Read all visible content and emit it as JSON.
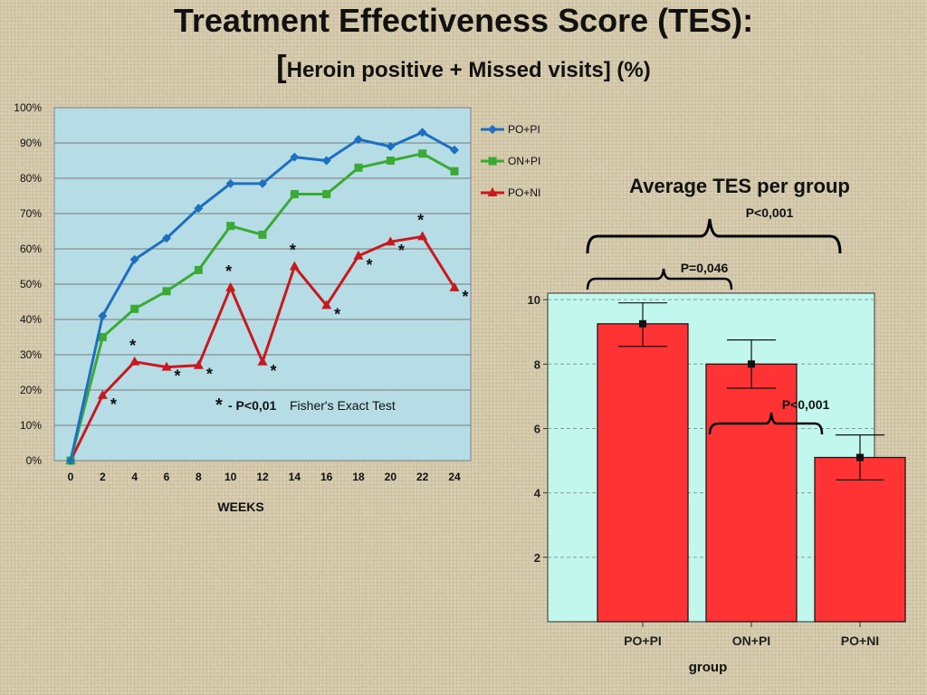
{
  "title": {
    "line1": "Treatment Effectiveness Score (TES):",
    "line2_bracket": "[",
    "line2": "Heroin positive + Missed visits] (%)"
  },
  "colors": {
    "po_pi": "#1f6fc0",
    "on_pi": "#3aaa35",
    "po_ni": "#c8191e",
    "line_plot_bg": "#b6dde6",
    "bar_plot_bg": "#c2f7ee",
    "bar_fill": "#ff3333"
  },
  "line_chart": {
    "xlabel": "WEEKS",
    "note_star": "*",
    "note_bold": "- P<0,01",
    "note_rest": "Fisher's Exact Test"
  },
  "bar_chart": {
    "heading": "Average TES per group",
    "xlabel": "group",
    "p_top": "P<0,001",
    "p_mid": "P=0,046",
    "p_right": "P<0,001"
  },
  "chart_data": [
    {
      "type": "line",
      "xlabel": "WEEKS",
      "ylabel": "",
      "x": [
        0,
        2,
        4,
        6,
        8,
        10,
        12,
        14,
        16,
        18,
        20,
        22,
        24
      ],
      "x_ticks": [
        "0",
        "2",
        "4",
        "6",
        "8",
        "10",
        "12",
        "14",
        "16",
        "18",
        "20",
        "22",
        "24"
      ],
      "y_ticks": [
        "0%",
        "10%",
        "20%",
        "30%",
        "40%",
        "50%",
        "60%",
        "70%",
        "80%",
        "90%",
        "100%"
      ],
      "ylim": [
        0,
        100
      ],
      "grid": true,
      "legend": "right",
      "series": [
        {
          "name": "PO+PI",
          "values": [
            0,
            41,
            57,
            63,
            71.5,
            78.5,
            78.5,
            86,
            85,
            91,
            89,
            93,
            88
          ]
        },
        {
          "name": "ON+PI",
          "values": [
            0,
            35,
            43,
            48,
            54,
            66.5,
            64,
            75.5,
            75.5,
            83,
            85,
            87,
            82
          ]
        },
        {
          "name": "PO+NI",
          "values": [
            0,
            18.5,
            28,
            26.5,
            27,
            49,
            28,
            55,
            44,
            58,
            62,
            63.5,
            49
          ]
        }
      ],
      "significance_marks": [
        2,
        4,
        6,
        8,
        10,
        12,
        14,
        16,
        18,
        20,
        22,
        24
      ]
    },
    {
      "type": "bar",
      "title": "Average TES per group",
      "xlabel": "group",
      "ylabel": "",
      "categories": [
        "PO+PI",
        "ON+PI",
        "PO+NI"
      ],
      "values": [
        9.25,
        8.0,
        5.1
      ],
      "error_low": [
        8.55,
        7.25,
        4.4
      ],
      "error_high": [
        9.9,
        8.75,
        5.8
      ],
      "y_ticks": [
        "2",
        "4",
        "6",
        "8",
        "10"
      ],
      "ylim": [
        0,
        10.2
      ],
      "grid": true
    }
  ]
}
